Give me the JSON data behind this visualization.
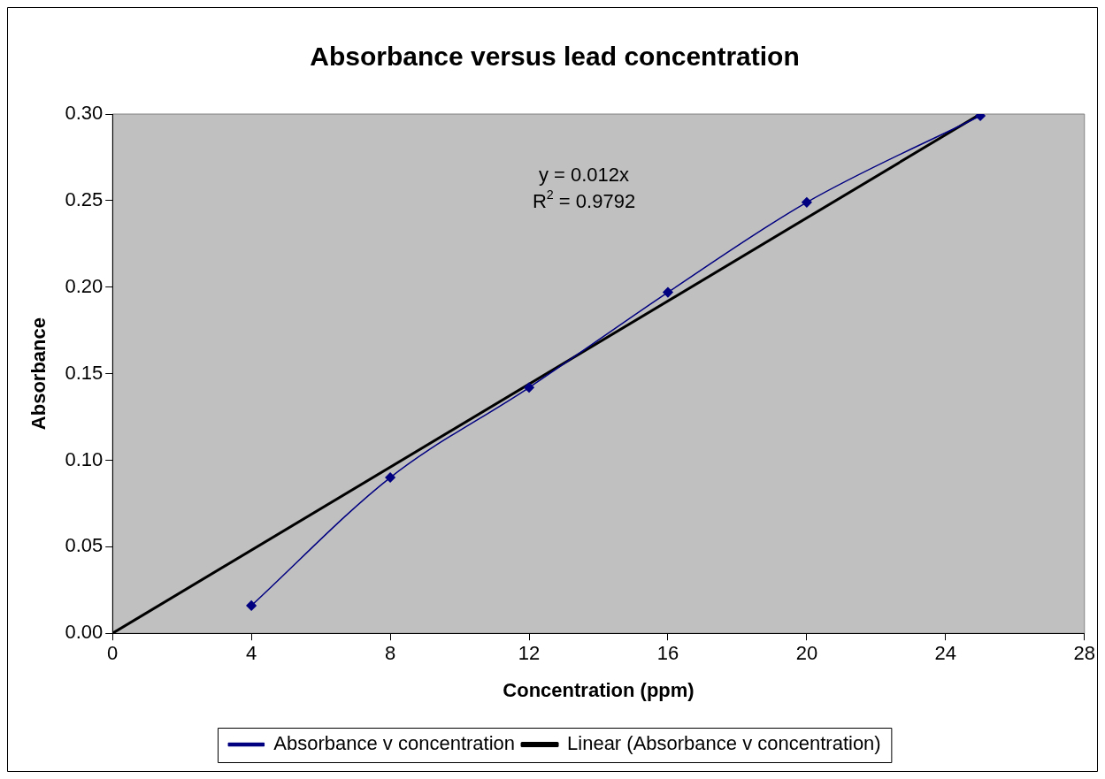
{
  "chart_data": {
    "type": "line",
    "title": "Absorbance versus lead concentration",
    "xlabel": "Concentration (ppm)",
    "ylabel": "Absorbance",
    "series": [
      {
        "name": "Absorbance v concentration",
        "color": "#000080",
        "x": [
          4,
          8,
          12,
          16,
          20,
          25
        ],
        "values": [
          0.016,
          0.09,
          0.142,
          0.197,
          0.249,
          0.299
        ],
        "marker": "diamond"
      },
      {
        "name": "Linear (Absorbance v concentration)",
        "color": "#000000",
        "x": [
          0,
          25
        ],
        "values": [
          0,
          0.3
        ],
        "marker": "none"
      }
    ],
    "annotations": [
      "y = 0.012x",
      "R$^{2}$ = 0.9792"
    ],
    "xlim": [
      0,
      28
    ],
    "xticks": [
      0,
      4,
      8,
      12,
      16,
      20,
      24,
      28
    ],
    "ylim": [
      0,
      0.3
    ],
    "yticks": [
      {
        "value": 0,
        "label": "0.00"
      },
      {
        "value": 0.05,
        "label": "0.05"
      },
      {
        "value": 0.1,
        "label": "0.10"
      },
      {
        "value": 0.15,
        "label": "0.15"
      },
      {
        "value": 0.2,
        "label": "0.20"
      },
      {
        "value": 0.25,
        "label": "0.25"
      },
      {
        "value": 0.3,
        "label": "0.30"
      }
    ],
    "grid": false,
    "legend": "bottom"
  }
}
